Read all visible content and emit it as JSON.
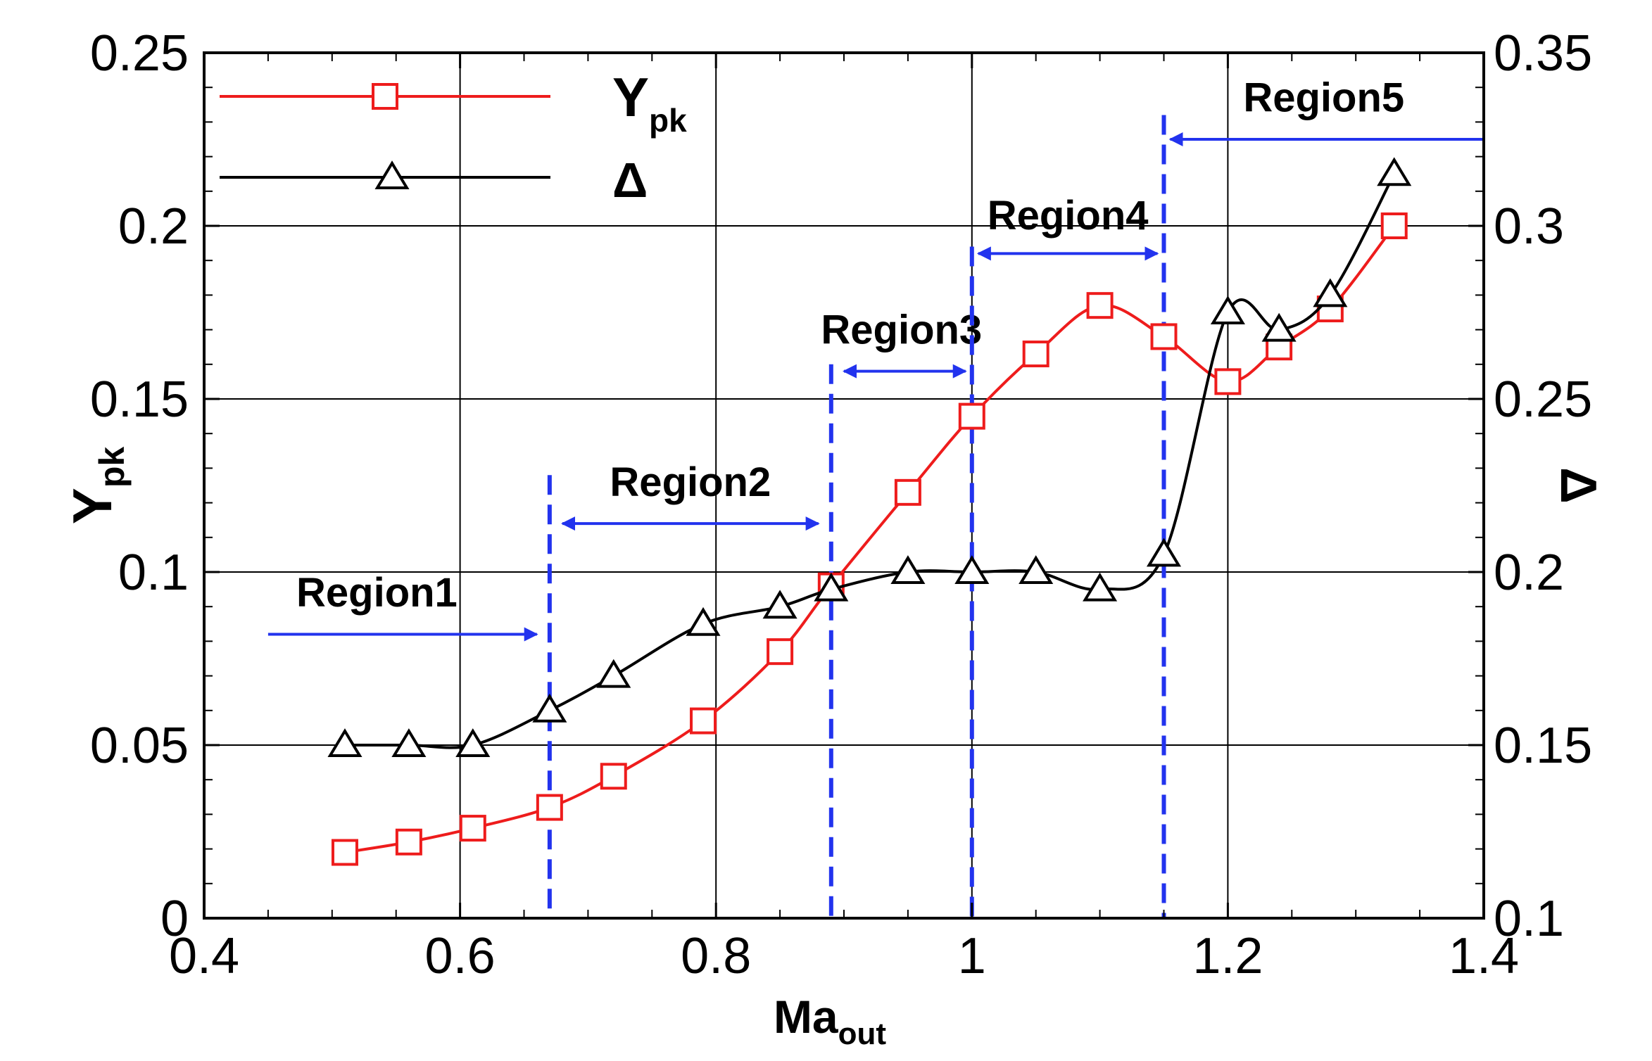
{
  "chart_data": {
    "type": "line",
    "x_axis": {
      "label_main": "Ma",
      "label_sub": "out",
      "range": [
        0.4,
        1.4
      ],
      "ticks": [
        0.4,
        0.6,
        0.8,
        1.0,
        1.2,
        1.4
      ],
      "tick_labels": [
        "0.4",
        "0.6",
        "0.8",
        "1",
        "1.2",
        "1.4"
      ]
    },
    "y_axis_left": {
      "label_main": "Y",
      "label_sub": "pk",
      "range": [
        0,
        0.25
      ],
      "ticks": [
        0,
        0.05,
        0.1,
        0.15,
        0.2,
        0.25
      ],
      "tick_labels": [
        "0",
        "0.05",
        "0.1",
        "0.15",
        "0.2",
        "0.25"
      ]
    },
    "y_axis_right": {
      "label": "Δ",
      "range": [
        0.1,
        0.35
      ],
      "ticks": [
        0.1,
        0.15,
        0.2,
        0.25,
        0.3,
        0.35
      ],
      "tick_labels": [
        "0.1",
        "0.15",
        "0.2",
        "0.25",
        "0.3",
        "0.35"
      ]
    },
    "grid": true,
    "legend_position": "top-left",
    "series": [
      {
        "name": "Y",
        "name_sub": "pk",
        "axis": "left",
        "marker": "square",
        "color": "#ee1c1c",
        "x": [
          0.51,
          0.56,
          0.61,
          0.67,
          0.72,
          0.79,
          0.85,
          0.89,
          0.95,
          1.0,
          1.05,
          1.1,
          1.15,
          1.2,
          1.24,
          1.28,
          1.33
        ],
        "y": [
          0.019,
          0.022,
          0.026,
          0.032,
          0.041,
          0.057,
          0.077,
          0.096,
          0.123,
          0.145,
          0.163,
          0.177,
          0.168,
          0.155,
          0.165,
          0.176,
          0.2
        ]
      },
      {
        "name": "Δ",
        "axis": "right",
        "marker": "triangle",
        "color": "#000000",
        "x": [
          0.51,
          0.56,
          0.61,
          0.67,
          0.72,
          0.79,
          0.85,
          0.89,
          0.95,
          1.0,
          1.05,
          1.1,
          1.15,
          1.2,
          1.24,
          1.28,
          1.33
        ],
        "y": [
          0.15,
          0.15,
          0.15,
          0.16,
          0.17,
          0.185,
          0.19,
          0.195,
          0.2,
          0.2,
          0.2,
          0.195,
          0.205,
          0.275,
          0.27,
          0.28,
          0.315
        ]
      }
    ],
    "regions": [
      {
        "label": "Region1",
        "boundary_x": null,
        "arrow_from_x": 0.45,
        "arrow_to_x": 0.66,
        "arrow_y": 0.082,
        "double": false,
        "label_x": 0.535,
        "label_y": 0.09
      },
      {
        "label": "Region2",
        "boundary_x": 0.67,
        "arrow_from_x": 0.68,
        "arrow_to_x": 0.88,
        "arrow_y": 0.114,
        "double": true,
        "label_x": 0.78,
        "label_y": 0.122
      },
      {
        "label": "Region3",
        "boundary_x": 0.89,
        "arrow_from_x": 0.9,
        "arrow_to_x": 0.995,
        "arrow_y": 0.158,
        "double": true,
        "label_x": 0.945,
        "label_y": 0.166
      },
      {
        "label": "Region4",
        "boundary_x": 1.0,
        "arrow_from_x": 1.005,
        "arrow_to_x": 1.145,
        "arrow_y": 0.192,
        "double": true,
        "label_x": 1.075,
        "label_y": 0.199
      },
      {
        "label": "Region5",
        "boundary_x": 1.15,
        "arrow_from_x": 1.4,
        "arrow_to_x": 1.155,
        "arrow_y": 0.225,
        "double": false,
        "label_x": 1.275,
        "label_y": 0.233
      }
    ],
    "region_line_color": "#2233ee"
  }
}
